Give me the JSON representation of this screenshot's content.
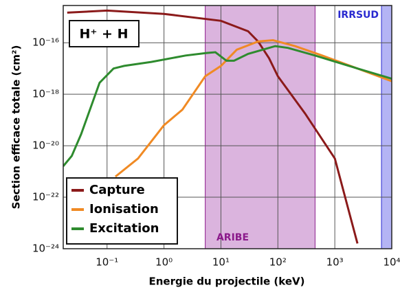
{
  "chart_data": {
    "type": "line",
    "annotation": "H⁺ + H",
    "xlabel": "Energie du projectile (keV)",
    "ylabel": "Section efficace totale (cm²)",
    "xscale": "log",
    "yscale": "log",
    "xlim": [
      0.017,
      10000
    ],
    "ylim": [
      1e-24,
      2.8e-15
    ],
    "xticks": [
      {
        "value": 0.1,
        "label": "10⁻¹"
      },
      {
        "value": 1,
        "label": "10⁰"
      },
      {
        "value": 10,
        "label": "10¹"
      },
      {
        "value": 100,
        "label": "10²"
      },
      {
        "value": 1000,
        "label": "10³"
      },
      {
        "value": 10000,
        "label": "10⁴"
      }
    ],
    "yticks": [
      {
        "value": 1e-24,
        "label": "10⁻²⁴"
      },
      {
        "value": 1e-22,
        "label": "10⁻²²"
      },
      {
        "value": 1e-20,
        "label": "10⁻²⁰"
      },
      {
        "value": 1e-18,
        "label": "10⁻¹⁸"
      },
      {
        "value": 1e-16,
        "label": "10⁻¹⁶"
      }
    ],
    "grid": true,
    "legend": "lower left",
    "regions": [
      {
        "label": "ARIBE",
        "xlim": [
          5.3,
          450
        ],
        "color": "#dbb4de",
        "label_color": "#8b1a8b"
      },
      {
        "label": "IRRSUD",
        "xlim": [
          6600,
          10000
        ],
        "color": "#b4b4f4",
        "label_color": "#2a2ad0"
      }
    ],
    "series": [
      {
        "name": "Capture",
        "color": "#8b1a1a",
        "x": [
          0.02,
          0.1,
          1,
          10,
          30,
          45,
          70,
          100,
          300,
          1000,
          2500
        ],
        "values": [
          1.48e-15,
          1.78e-15,
          1.32e-15,
          7.1e-16,
          2.8e-16,
          1.12e-16,
          2.5e-17,
          5e-18,
          1.8e-19,
          3.2e-21,
          1.6e-24
        ]
      },
      {
        "name": "Ionisation",
        "color": "#f08a24",
        "x": [
          0.14,
          0.35,
          1,
          2.1,
          5.3,
          10,
          19,
          45,
          82,
          200,
          600,
          2500,
          10000
        ],
        "values": [
          6.3e-22,
          3.2e-21,
          6.3e-20,
          2.5e-19,
          5e-18,
          1.26e-17,
          5.4e-17,
          1.12e-16,
          1.26e-16,
          7.4e-17,
          3.2e-17,
          1e-17,
          3.2e-18
        ]
      },
      {
        "name": "Excitation",
        "color": "#2e8b2e",
        "x": [
          0.017,
          0.024,
          0.035,
          0.05,
          0.074,
          0.13,
          0.2,
          0.6,
          2.4,
          5.6,
          8,
          12.5,
          17,
          30,
          90,
          150,
          450,
          2500,
          10000
        ],
        "values": [
          1.6e-21,
          4e-21,
          2.8e-20,
          2.5e-19,
          2.8e-18,
          1e-17,
          1.26e-17,
          1.8e-17,
          3.2e-17,
          4e-17,
          4.3e-17,
          2e-17,
          2e-17,
          3.7e-17,
          7.4e-17,
          6.3e-17,
          3.2e-17,
          1e-17,
          4e-18
        ]
      }
    ]
  }
}
